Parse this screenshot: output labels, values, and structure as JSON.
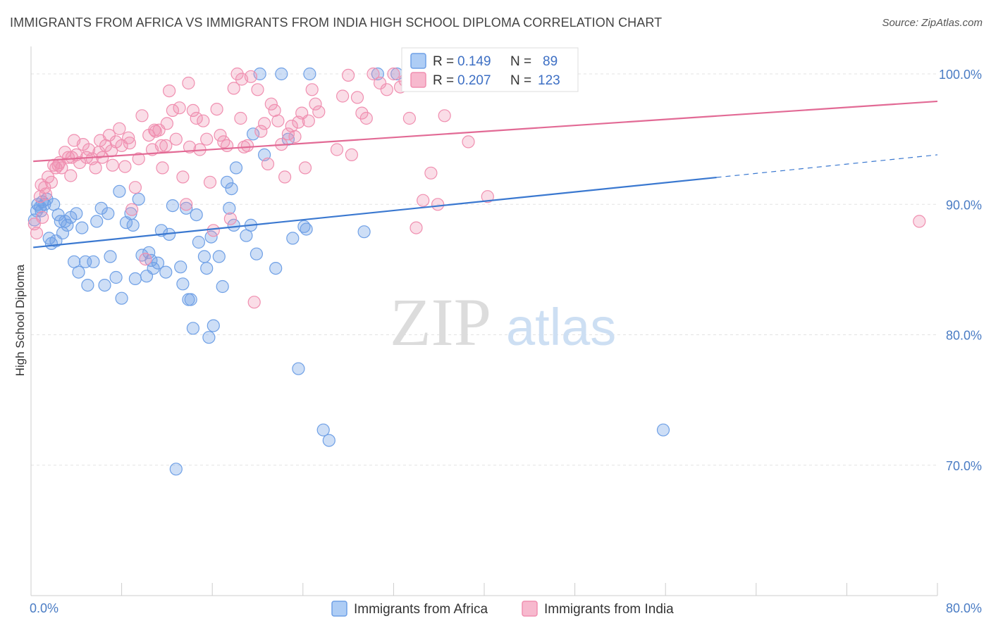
{
  "title": "IMMIGRANTS FROM AFRICA VS IMMIGRANTS FROM INDIA HIGH SCHOOL DIPLOMA CORRELATION CHART",
  "source": "Source: ZipAtlas.com",
  "watermark": {
    "zip": "ZIP",
    "atlas": "atlas"
  },
  "legend": {
    "r_label": "R =",
    "n_label": "N =",
    "entries": [
      {
        "r": "0.149",
        "n": "89"
      },
      {
        "r": "0.207",
        "n": "123"
      }
    ]
  },
  "chart_data": {
    "type": "scatter",
    "title": "IMMIGRANTS FROM AFRICA VS IMMIGRANTS FROM INDIA HIGH SCHOOL DIPLOMA CORRELATION CHART",
    "xlabel": "",
    "ylabel": "High School Diploma",
    "xlim": [
      0,
      80
    ],
    "ylim": [
      60,
      102
    ],
    "x_tick_labels": [
      "0.0%",
      "80.0%"
    ],
    "y_ticks": [
      70,
      80,
      90,
      100
    ],
    "y_tick_labels": [
      "70.0%",
      "80.0%",
      "90.0%",
      "100.0%"
    ],
    "grid": true,
    "legend_position": "top-center",
    "colors": {
      "africa": "#6fa0e6",
      "india": "#f08fb0",
      "africa_line": "#3a78d0",
      "india_line": "#e26a95"
    },
    "series": [
      {
        "name": "Immigrants from Africa",
        "r": 0.149,
        "n": 89,
        "trend": {
          "x0": 0.2,
          "y0": 86.7,
          "x1": 80,
          "y1": 93.8,
          "solid_until": 60.5
        },
        "points": [
          [
            0.3,
            88.8
          ],
          [
            0.5,
            89.5
          ],
          [
            0.6,
            90.0
          ],
          [
            0.8,
            89.8
          ],
          [
            1.0,
            90.2
          ],
          [
            1.2,
            90.0
          ],
          [
            1.4,
            90.4
          ],
          [
            1.6,
            87.4
          ],
          [
            1.8,
            87.0
          ],
          [
            2.0,
            90.0
          ],
          [
            2.2,
            87.2
          ],
          [
            2.4,
            89.2
          ],
          [
            2.6,
            88.7
          ],
          [
            3.0,
            88.7
          ],
          [
            3.2,
            88.4
          ],
          [
            3.5,
            89.0
          ],
          [
            3.8,
            85.6
          ],
          [
            4.0,
            89.3
          ],
          [
            4.2,
            84.8
          ],
          [
            4.5,
            88.2
          ],
          [
            4.8,
            85.6
          ],
          [
            5.0,
            83.8
          ],
          [
            5.5,
            85.6
          ],
          [
            5.8,
            88.7
          ],
          [
            6.2,
            89.7
          ],
          [
            6.5,
            83.8
          ],
          [
            6.8,
            89.3
          ],
          [
            7.0,
            86.0
          ],
          [
            7.5,
            84.4
          ],
          [
            7.8,
            91.0
          ],
          [
            8.0,
            82.8
          ],
          [
            8.4,
            88.6
          ],
          [
            8.8,
            89.3
          ],
          [
            9.0,
            88.4
          ],
          [
            9.2,
            84.3
          ],
          [
            9.5,
            90.4
          ],
          [
            9.8,
            86.1
          ],
          [
            10.2,
            84.5
          ],
          [
            10.4,
            86.3
          ],
          [
            10.6,
            85.7
          ],
          [
            10.8,
            85.1
          ],
          [
            11.2,
            85.5
          ],
          [
            11.5,
            88.0
          ],
          [
            11.9,
            84.8
          ],
          [
            12.2,
            87.7
          ],
          [
            12.5,
            89.9
          ],
          [
            12.8,
            69.7
          ],
          [
            13.2,
            85.2
          ],
          [
            13.4,
            83.9
          ],
          [
            13.7,
            89.7
          ],
          [
            13.9,
            82.7
          ],
          [
            14.1,
            82.7
          ],
          [
            14.3,
            80.5
          ],
          [
            14.6,
            89.2
          ],
          [
            14.8,
            87.1
          ],
          [
            15.3,
            86.0
          ],
          [
            15.5,
            85.1
          ],
          [
            15.7,
            79.8
          ],
          [
            15.9,
            87.5
          ],
          [
            16.1,
            80.7
          ],
          [
            16.6,
            86.0
          ],
          [
            16.9,
            83.7
          ],
          [
            17.3,
            91.7
          ],
          [
            17.5,
            89.7
          ],
          [
            17.7,
            91.2
          ],
          [
            17.9,
            88.4
          ],
          [
            18.1,
            92.8
          ],
          [
            19.0,
            87.6
          ],
          [
            19.4,
            88.4
          ],
          [
            19.6,
            95.4
          ],
          [
            19.9,
            86.2
          ],
          [
            20.2,
            100.0
          ],
          [
            20.6,
            93.8
          ],
          [
            21.6,
            85.1
          ],
          [
            22.1,
            100.0
          ],
          [
            22.7,
            95.0
          ],
          [
            23.1,
            87.4
          ],
          [
            23.6,
            77.4
          ],
          [
            24.1,
            88.3
          ],
          [
            24.3,
            88.1
          ],
          [
            24.6,
            100.0
          ],
          [
            25.8,
            72.7
          ],
          [
            26.3,
            71.9
          ],
          [
            29.4,
            87.9
          ],
          [
            30.6,
            100.0
          ],
          [
            32.3,
            100.0
          ],
          [
            55.8,
            72.7
          ],
          [
            0.9,
            89.5
          ],
          [
            2.8,
            87.8
          ]
        ]
      },
      {
        "name": "Immigrants from India",
        "r": 0.207,
        "n": 123,
        "trend": {
          "x0": 0.2,
          "y0": 93.3,
          "x1": 80,
          "y1": 97.9
        },
        "points": [
          [
            0.3,
            88.5
          ],
          [
            0.5,
            87.8
          ],
          [
            0.8,
            90.6
          ],
          [
            1.0,
            89.0
          ],
          [
            1.2,
            91.3
          ],
          [
            1.5,
            92.1
          ],
          [
            1.8,
            91.7
          ],
          [
            2.0,
            93.0
          ],
          [
            2.2,
            92.8
          ],
          [
            2.5,
            93.2
          ],
          [
            2.7,
            92.8
          ],
          [
            3.0,
            94.0
          ],
          [
            3.3,
            93.6
          ],
          [
            3.5,
            92.2
          ],
          [
            3.8,
            94.9
          ],
          [
            4.0,
            93.8
          ],
          [
            4.3,
            93.2
          ],
          [
            4.6,
            94.6
          ],
          [
            4.9,
            93.6
          ],
          [
            5.1,
            94.2
          ],
          [
            5.4,
            93.5
          ],
          [
            5.7,
            92.8
          ],
          [
            6.0,
            94.0
          ],
          [
            6.3,
            93.6
          ],
          [
            6.6,
            94.5
          ],
          [
            6.9,
            95.3
          ],
          [
            7.2,
            93.0
          ],
          [
            7.5,
            94.8
          ],
          [
            7.8,
            95.8
          ],
          [
            8.0,
            94.5
          ],
          [
            8.3,
            92.9
          ],
          [
            8.6,
            95.1
          ],
          [
            8.9,
            89.6
          ],
          [
            9.2,
            91.3
          ],
          [
            9.5,
            93.5
          ],
          [
            9.8,
            96.8
          ],
          [
            10.1,
            85.8
          ],
          [
            10.4,
            95.3
          ],
          [
            10.7,
            94.2
          ],
          [
            11.0,
            95.6
          ],
          [
            11.3,
            95.7
          ],
          [
            11.6,
            92.8
          ],
          [
            11.9,
            94.5
          ],
          [
            12.2,
            98.7
          ],
          [
            12.5,
            97.2
          ],
          [
            12.8,
            95.0
          ],
          [
            13.1,
            97.4
          ],
          [
            13.4,
            92.1
          ],
          [
            13.7,
            90.0
          ],
          [
            14.0,
            94.4
          ],
          [
            14.3,
            97.2
          ],
          [
            14.6,
            96.6
          ],
          [
            14.9,
            94.2
          ],
          [
            15.2,
            96.4
          ],
          [
            15.5,
            95.0
          ],
          [
            15.8,
            91.7
          ],
          [
            16.1,
            88.0
          ],
          [
            16.4,
            97.3
          ],
          [
            16.7,
            95.3
          ],
          [
            17.0,
            94.8
          ],
          [
            17.3,
            94.5
          ],
          [
            17.6,
            88.9
          ],
          [
            17.9,
            98.9
          ],
          [
            18.2,
            100.0
          ],
          [
            18.5,
            96.6
          ],
          [
            18.8,
            94.4
          ],
          [
            19.1,
            94.5
          ],
          [
            19.4,
            99.8
          ],
          [
            19.7,
            82.5
          ],
          [
            20.0,
            98.8
          ],
          [
            20.3,
            95.6
          ],
          [
            20.6,
            96.2
          ],
          [
            20.9,
            93.1
          ],
          [
            21.2,
            97.7
          ],
          [
            21.5,
            97.2
          ],
          [
            21.8,
            96.4
          ],
          [
            22.1,
            94.6
          ],
          [
            22.4,
            92.1
          ],
          [
            22.7,
            95.4
          ],
          [
            23.0,
            96.0
          ],
          [
            23.3,
            95.2
          ],
          [
            23.6,
            96.3
          ],
          [
            23.9,
            97.0
          ],
          [
            24.2,
            92.8
          ],
          [
            24.5,
            96.4
          ],
          [
            24.8,
            98.8
          ],
          [
            25.1,
            97.7
          ],
          [
            25.4,
            97.1
          ],
          [
            27.0,
            94.2
          ],
          [
            27.5,
            98.3
          ],
          [
            28.0,
            99.9
          ],
          [
            28.3,
            93.8
          ],
          [
            28.8,
            98.2
          ],
          [
            29.2,
            97.0
          ],
          [
            29.6,
            96.6
          ],
          [
            30.2,
            100.0
          ],
          [
            30.8,
            99.3
          ],
          [
            31.4,
            98.8
          ],
          [
            32.0,
            100.0
          ],
          [
            32.6,
            99.0
          ],
          [
            33.0,
            99.5
          ],
          [
            33.4,
            96.6
          ],
          [
            34.6,
            90.3
          ],
          [
            35.3,
            92.4
          ],
          [
            35.9,
            90.0
          ],
          [
            36.5,
            96.8
          ],
          [
            37.2,
            100.0
          ],
          [
            38.6,
            94.8
          ],
          [
            40.3,
            90.6
          ],
          [
            78.4,
            88.7
          ],
          [
            0.9,
            91.5
          ],
          [
            1.3,
            90.8
          ],
          [
            2.4,
            93.0
          ],
          [
            3.6,
            93.6
          ],
          [
            6.1,
            94.9
          ],
          [
            7.1,
            94.1
          ],
          [
            8.7,
            94.7
          ],
          [
            10.9,
            95.7
          ],
          [
            11.5,
            94.5
          ],
          [
            12.0,
            96.2
          ],
          [
            13.9,
            99.3
          ],
          [
            18.6,
            99.6
          ],
          [
            34.0,
            88.2
          ]
        ]
      }
    ]
  }
}
